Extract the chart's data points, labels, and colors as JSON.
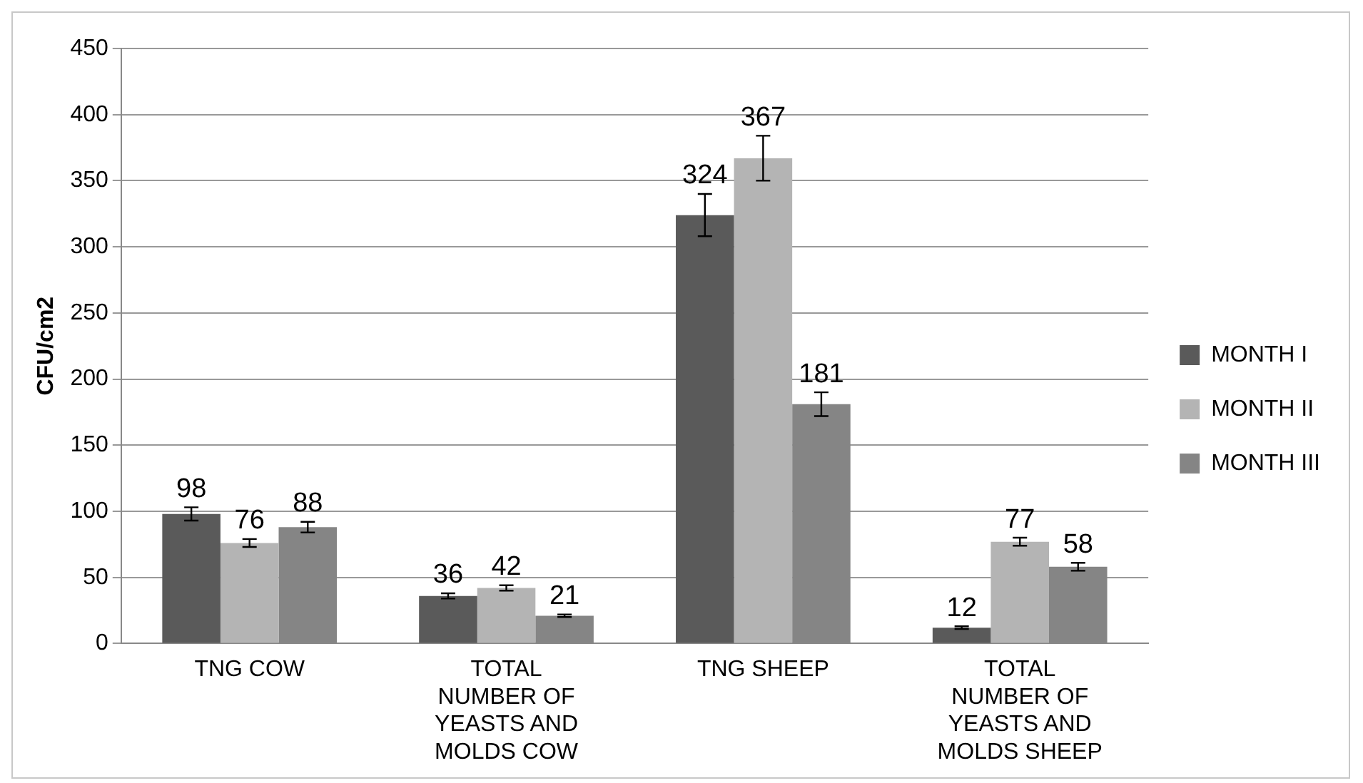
{
  "chart_data": {
    "type": "bar",
    "ylabel": "CFU/cm2",
    "categories": [
      "TNG COW",
      "TOTAL NUMBER OF YEASTS AND MOLDS COW",
      "TNG SHEEP",
      "TOTAL NUMBER OF YEASTS AND MOLDS SHEEP"
    ],
    "series": [
      {
        "name": "MONTH I",
        "color": "#5a5a5a",
        "values": [
          98,
          36,
          324,
          12
        ],
        "errors": [
          5,
          2,
          16,
          1
        ]
      },
      {
        "name": "MONTH II",
        "color": "#b4b4b4",
        "values": [
          76,
          42,
          367,
          77
        ],
        "errors": [
          3,
          2,
          17,
          3
        ]
      },
      {
        "name": "MONTH III",
        "color": "#858585",
        "values": [
          88,
          21,
          181,
          58
        ],
        "errors": [
          4,
          1,
          9,
          3
        ]
      }
    ],
    "ylim": [
      0,
      450
    ],
    "yticks": [
      0,
      50,
      100,
      150,
      200,
      250,
      300,
      350,
      400,
      450
    ],
    "grid": "y",
    "legend": "right",
    "data_labels": true
  }
}
